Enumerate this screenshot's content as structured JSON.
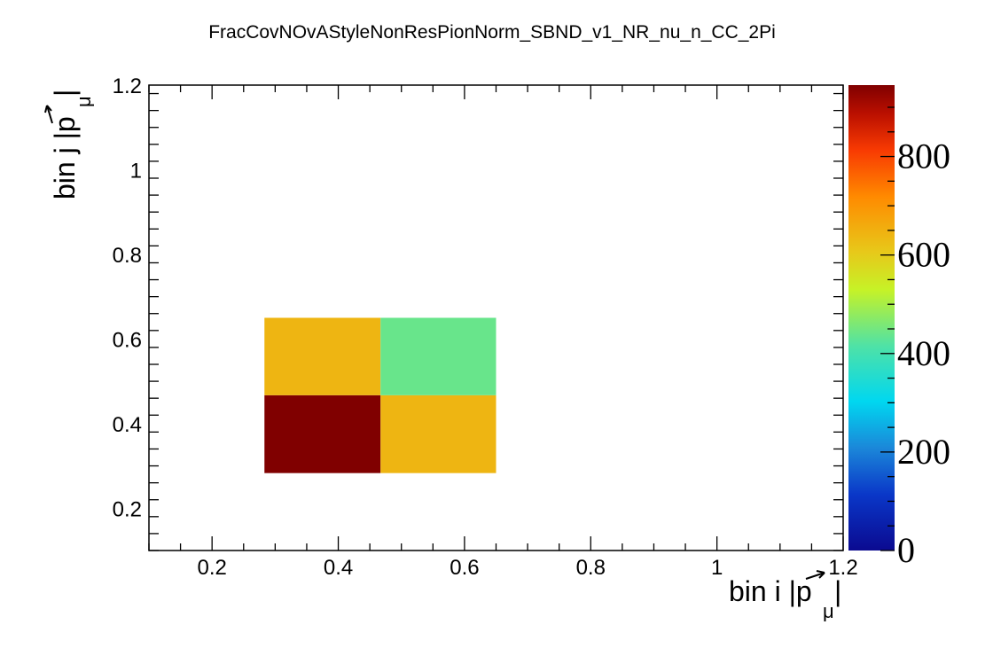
{
  "chart_data": {
    "type": "heatmap",
    "title": "FracCovNOvAStyleNonResPionNorm_SBND_v1_NR_nu_n_CC_2Pi",
    "xlabel_prefix": "bin i |",
    "xlabel_p": "p",
    "xlabel_sub": "μ",
    "xlabel_suffix": "|",
    "ylabel_prefix": "bin j |",
    "ylabel_p": "p",
    "ylabel_sub": "μ",
    "ylabel_suffix": "|",
    "xlim": [
      0.1,
      1.2
    ],
    "ylim": [
      0.1,
      1.2
    ],
    "zlim": [
      0,
      945
    ],
    "x_ticks": [
      {
        "value": 0.2,
        "label": "0.2"
      },
      {
        "value": 0.4,
        "label": "0.4"
      },
      {
        "value": 0.6,
        "label": "0.6"
      },
      {
        "value": 0.8,
        "label": "0.8"
      },
      {
        "value": 1.0,
        "label": "1"
      },
      {
        "value": 1.2,
        "label": "1.2"
      }
    ],
    "y_ticks": [
      {
        "value": 0.2,
        "label": "0.2"
      },
      {
        "value": 0.4,
        "label": "0.4"
      },
      {
        "value": 0.6,
        "label": "0.6"
      },
      {
        "value": 0.8,
        "label": "0.8"
      },
      {
        "value": 1.0,
        "label": "1"
      },
      {
        "value": 1.2,
        "label": "1.2"
      }
    ],
    "z_ticks": [
      {
        "value": 0,
        "label": "0"
      },
      {
        "value": 200,
        "label": "200"
      },
      {
        "value": 400,
        "label": "400"
      },
      {
        "value": 600,
        "label": "600"
      },
      {
        "value": 800,
        "label": "800"
      }
    ],
    "x_bin_edges": [
      0.283,
      0.467,
      0.65
    ],
    "y_bin_edges": [
      0.283,
      0.467,
      0.65
    ],
    "cells": [
      {
        "i": 0,
        "j": 0,
        "value": 945
      },
      {
        "i": 1,
        "j": 0,
        "value": 640
      },
      {
        "i": 0,
        "j": 1,
        "value": 640
      },
      {
        "i": 1,
        "j": 1,
        "value": 440
      }
    ],
    "colorscale": [
      {
        "v": 0.0,
        "color": "#0b0a90"
      },
      {
        "v": 0.12,
        "color": "#0a37c8"
      },
      {
        "v": 0.22,
        "color": "#1b87d9"
      },
      {
        "v": 0.32,
        "color": "#00d7f0"
      },
      {
        "v": 0.44,
        "color": "#4fe2a6"
      },
      {
        "v": 0.56,
        "color": "#c6f227"
      },
      {
        "v": 0.64,
        "color": "#e7c91a"
      },
      {
        "v": 0.76,
        "color": "#ff8a00"
      },
      {
        "v": 0.86,
        "color": "#f83a02"
      },
      {
        "v": 0.94,
        "color": "#b90f00"
      },
      {
        "v": 1.0,
        "color": "#800000"
      }
    ],
    "grid": false
  }
}
